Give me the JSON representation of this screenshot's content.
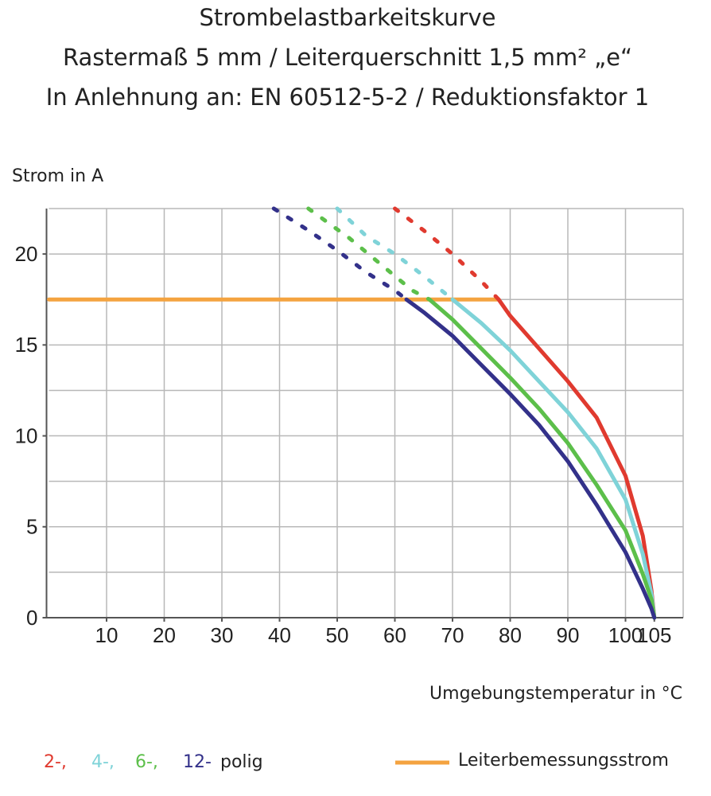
{
  "chart_data": {
    "type": "line",
    "title": "Strombelastbarkeitskurve",
    "subtitle": "Rastermaß 5 mm / Leiterquerschnitt 1,5 mm² „e“",
    "subtitle2": "In Anlehnung an: EN 60512-5-2 / Reduktionsfaktor 1",
    "y_label": "Strom in A",
    "x_label": "Umgebungstemperatur in °C",
    "legend_suffix": "polig",
    "xlim": [
      0,
      110
    ],
    "ylim": [
      0,
      22.5
    ],
    "xticks": [
      10,
      20,
      30,
      40,
      50,
      60,
      70,
      80,
      90,
      100,
      105
    ],
    "x_grid": [
      10,
      20,
      30,
      40,
      50,
      60,
      70,
      80,
      90,
      100,
      110
    ],
    "yticks": [
      0,
      5,
      10,
      15,
      20
    ],
    "minor_yticks": [
      2.5,
      7.5,
      12.5,
      17.5,
      22.5
    ],
    "grid": true,
    "series": [
      {
        "name": "2-,",
        "color": "#e03a2f",
        "x": [
          78,
          80,
          85,
          90,
          95,
          100,
          103,
          104.5,
          105
        ],
        "values": [
          17.5,
          16.6,
          14.8,
          13,
          11,
          7.8,
          4.5,
          1.5,
          0
        ],
        "extrapolation": {
          "x": [
            60,
            65,
            70,
            75,
            78
          ],
          "values": [
            22.5,
            21.3,
            20,
            18.5,
            17.5
          ]
        }
      },
      {
        "name": "4-,",
        "color": "#7fd3d8",
        "x": [
          70,
          75,
          80,
          85,
          90,
          95,
          100,
          103,
          104.5,
          105
        ],
        "values": [
          17.5,
          16.2,
          14.7,
          13,
          11.3,
          9.3,
          6.5,
          3.5,
          1.3,
          0
        ],
        "extrapolation": {
          "x": [
            50,
            55,
            60,
            65,
            70
          ],
          "values": [
            22.5,
            21,
            20,
            18.8,
            17.5
          ]
        }
      },
      {
        "name": "6-,",
        "color": "#5cbf4a",
        "x": [
          66,
          70,
          75,
          80,
          85,
          90,
          95,
          100,
          103,
          104.5,
          105
        ],
        "values": [
          17.5,
          16.4,
          14.8,
          13.2,
          11.5,
          9.6,
          7.3,
          4.8,
          2.4,
          1,
          0
        ],
        "extrapolation": {
          "x": [
            45,
            52,
            63,
            66
          ],
          "values": [
            22.5,
            20.9,
            18,
            17.5
          ]
        }
      },
      {
        "name": "12-",
        "color": "#33318a",
        "x": [
          62,
          65,
          70,
          75,
          80,
          85,
          90,
          95,
          100,
          103,
          104.5,
          105
        ],
        "values": [
          17.5,
          16.8,
          15.5,
          13.9,
          12.3,
          10.6,
          8.6,
          6.2,
          3.6,
          1.6,
          0.5,
          0
        ],
        "extrapolation": {
          "x": [
            39,
            45,
            50,
            55,
            60,
            62
          ],
          "values": [
            22.5,
            21.3,
            20.2,
            19,
            18,
            17.5
          ]
        }
      }
    ],
    "rated_current": {
      "name": "Leiterbemessungsstrom",
      "color": "#f4a340",
      "x": [
        0,
        78
      ],
      "values": [
        17.5,
        17.5
      ]
    }
  }
}
